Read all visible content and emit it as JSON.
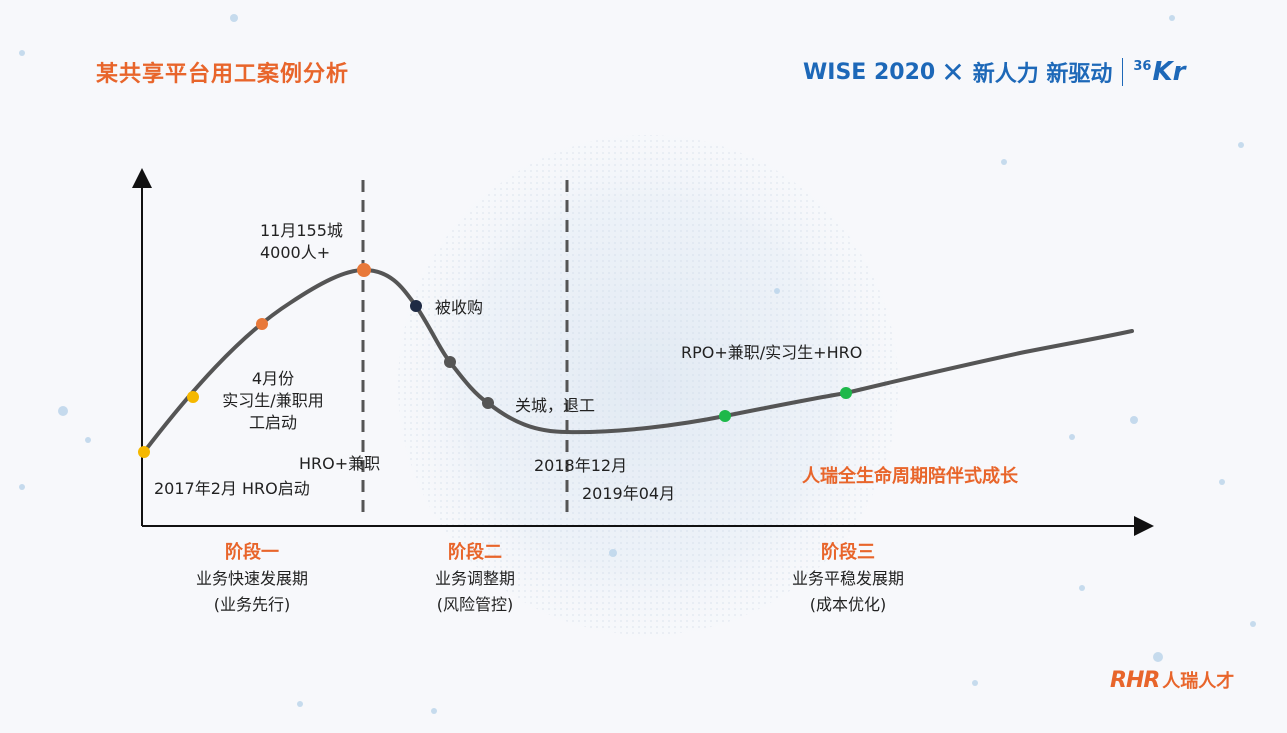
{
  "header": {
    "title": "某共享平台用工案例分析",
    "brand": {
      "event": "WISE 2020",
      "cross": "✕",
      "slogan": "新人力 新驱动",
      "logo_sup": "36",
      "logo_main": "Kr"
    }
  },
  "milestones": {
    "start": "2017年2月  HRO启动",
    "april_line1": "4月份",
    "april_line2": "实习生/兼职用",
    "april_line3": "工启动",
    "hro_parttime": "HRO+兼职",
    "peak_line1": "11月155城",
    "peak_line2": "4000人+",
    "acquired": "被收购",
    "closed": "关城，退工",
    "dec2018": "2018年12月",
    "apr2019": "2019年04月",
    "rpo": "RPO+兼职/实习生+HRO",
    "highlight": "人瑞全生命周期陪伴式成长"
  },
  "stages": [
    {
      "name": "阶段一",
      "desc": "业务快速发展期",
      "note": "(业务先行)"
    },
    {
      "name": "阶段二",
      "desc": "业务调整期",
      "note": "(风险管控)"
    },
    {
      "name": "阶段三",
      "desc": "业务平稳发展期",
      "note": "(成本优化)"
    }
  ],
  "footer_logo": {
    "mark": "RHR",
    "name": "人瑞人才"
  },
  "colors": {
    "accent_orange": "#e8652b",
    "brand_blue": "#1d68b8",
    "curve": "#555555",
    "dot_yellow": "#f5b800",
    "dot_orange": "#e8793a",
    "dot_navy": "#1e2a44",
    "dot_gray": "#555555",
    "dot_green": "#1db84a"
  }
}
